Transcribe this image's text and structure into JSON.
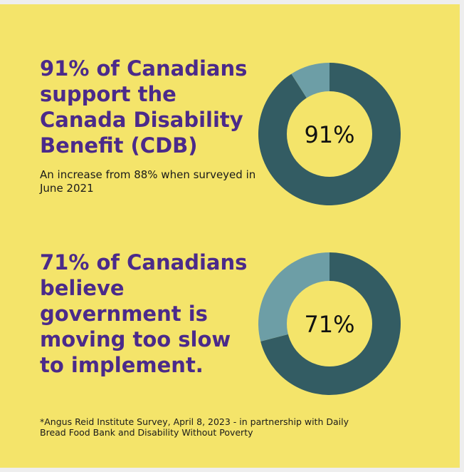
{
  "colors": {
    "background": "#f4e46a",
    "headline": "#4b2a8a",
    "ring_primary": "#335c63",
    "ring_secondary": "#6d9ea6",
    "inner": "#f4e46a"
  },
  "blocks": [
    {
      "headline": "91% of Canadians support the Canada Disability Benefit (CDB)",
      "sub": "An increase from 88% when surveyed in June 2021"
    },
    {
      "headline": "71% of Canadians believe government is moving too slow to implement."
    }
  ],
  "footnote": "*Angus Reid Institute Survey, April 8, 2023 - in partnership with Daily Bread Food Bank and Disability Without Poverty",
  "chart_data": [
    {
      "type": "pie",
      "categories": [
        "",
        ""
      ],
      "values": [
        91,
        9
      ],
      "center_label": "91%"
    },
    {
      "type": "pie",
      "categories": [
        "",
        ""
      ],
      "values": [
        71,
        29
      ],
      "center_label": "71%"
    }
  ]
}
